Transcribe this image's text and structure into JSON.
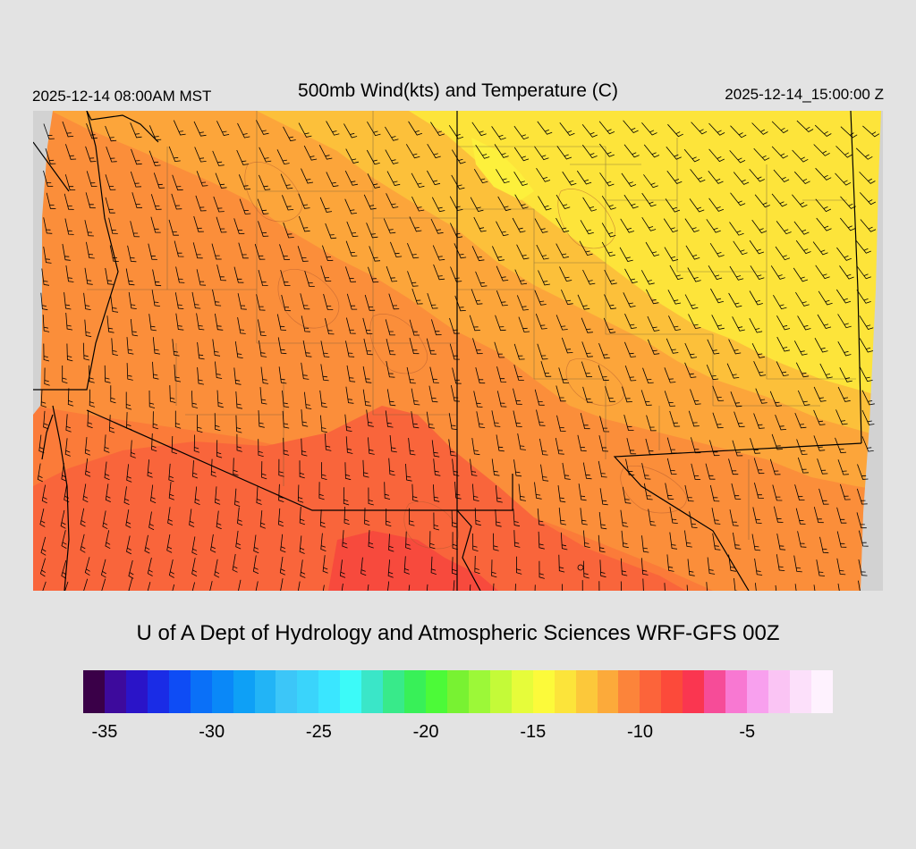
{
  "header": {
    "valid_local": "2025-12-14 08:00AM MST",
    "title": "500mb Wind(kts) and Temperature (C)",
    "valid_utc": "2025-12-14_15:00:00 Z"
  },
  "footer": {
    "credit": "U of A Dept of Hydrology and Atmospheric Sciences WRF-GFS 00Z"
  },
  "colorbar": {
    "colors": [
      "#3a0048",
      "#3d0a9c",
      "#2a14c8",
      "#1a2ce6",
      "#0e4cf5",
      "#0a70f8",
      "#0a88f8",
      "#0ea0f6",
      "#22b4f6",
      "#3cc6f8",
      "#3ad4fb",
      "#3ae6ff",
      "#3cfaf8",
      "#3ae6c8",
      "#38ea8a",
      "#38f058",
      "#4cfa38",
      "#78f232",
      "#9cf838",
      "#c4fa38",
      "#e6fc3a",
      "#fcfa3a",
      "#fce43a",
      "#fcc83a",
      "#fcaa3a",
      "#fc843a",
      "#fc643a",
      "#fc4a3a",
      "#fa3650",
      "#f64c98",
      "#f878d2",
      "#f8a0ee",
      "#fac4f4",
      "#fce0fa",
      "#fef2fe"
    ],
    "tick_labels": [
      "-35",
      "-30",
      "-25",
      "-20",
      "-15",
      "-10",
      "-5"
    ],
    "tick_values": [
      -35,
      -30,
      -25,
      -20,
      -15,
      -10,
      -5
    ],
    "min": -36,
    "max": -1
  },
  "map": {
    "fill_colors": [
      "#fb7b39",
      "#fa6e3a",
      "#f9543d",
      "#fba03a",
      "#fbc83a",
      "#fde43a",
      "#fb3a48",
      "#d2d2d2"
    ]
  }
}
